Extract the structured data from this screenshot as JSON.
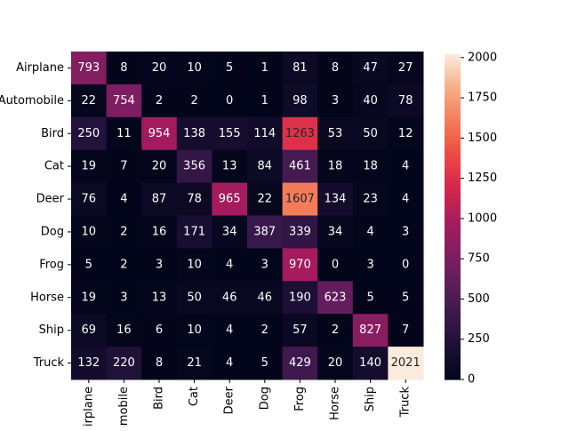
{
  "chart_data": {
    "type": "heatmap",
    "title": "",
    "xlabel": "",
    "ylabel": "",
    "row_labels": [
      "Airplane",
      "Automobile",
      "Bird",
      "Cat",
      "Deer",
      "Dog",
      "Frog",
      "Horse",
      "Ship",
      "Truck"
    ],
    "col_labels": [
      "Airplane",
      "Automobile",
      "Bird",
      "Cat",
      "Deer",
      "Dog",
      "Frog",
      "Horse",
      "Ship",
      "Truck"
    ],
    "values": [
      [
        793,
        8,
        20,
        10,
        5,
        1,
        81,
        8,
        47,
        27
      ],
      [
        22,
        754,
        2,
        2,
        0,
        1,
        98,
        3,
        40,
        78
      ],
      [
        250,
        11,
        954,
        138,
        155,
        114,
        1263,
        53,
        50,
        12
      ],
      [
        19,
        7,
        20,
        356,
        13,
        84,
        461,
        18,
        18,
        4
      ],
      [
        76,
        4,
        87,
        78,
        965,
        22,
        1607,
        134,
        23,
        4
      ],
      [
        10,
        2,
        16,
        171,
        34,
        387,
        339,
        34,
        4,
        3
      ],
      [
        5,
        2,
        3,
        10,
        4,
        3,
        970,
        0,
        3,
        0
      ],
      [
        19,
        3,
        13,
        50,
        46,
        46,
        190,
        623,
        5,
        5
      ],
      [
        69,
        16,
        6,
        10,
        4,
        2,
        57,
        2,
        827,
        7
      ],
      [
        132,
        220,
        8,
        21,
        4,
        5,
        429,
        20,
        140,
        2021
      ]
    ],
    "colormap": "rocket",
    "color_range": [
      0,
      2021
    ],
    "colorbar_ticks": [
      0,
      250,
      500,
      750,
      1000,
      1250,
      1500,
      1750,
      2000
    ],
    "colorbar_position": "right",
    "annotations": true
  }
}
